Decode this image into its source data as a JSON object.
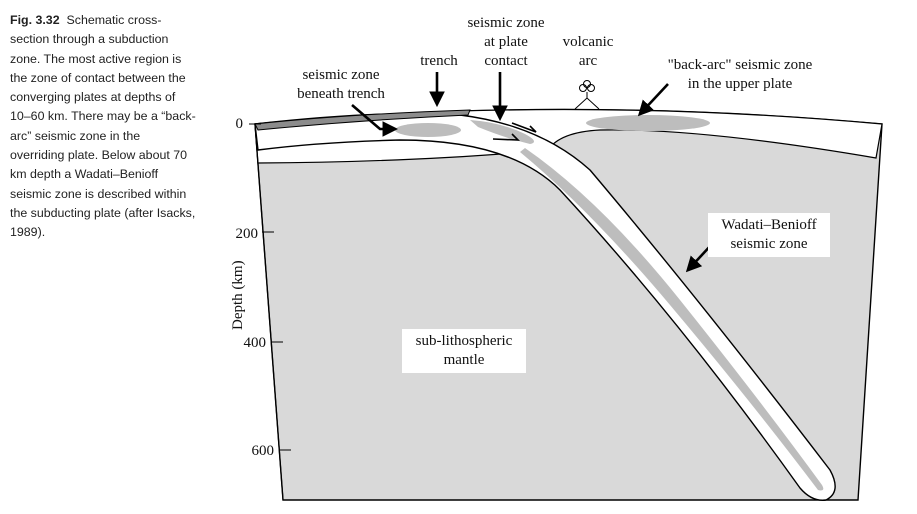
{
  "caption": {
    "figure_number": "Fig. 3.32",
    "text": "Schematic cross-section through a subduction zone. The most active region is the zone of contact between the converging plates at depths of 10–60 km. There may be a “back-arc” seismic zone in the overriding plate. Below about 70 km depth a Wadati–Benioff seismic zone is described within the subducting plate (after Isacks, 1989)."
  },
  "axis": {
    "title": "Depth (km)",
    "ticks": [
      "0",
      "200",
      "400",
      "600"
    ]
  },
  "labels": {
    "seismic_beneath_trench": [
      "seismic zone",
      "beneath trench"
    ],
    "trench": [
      "trench"
    ],
    "plate_contact": [
      "seismic zone",
      "at plate",
      "contact"
    ],
    "volcanic_arc": [
      "volcanic",
      "arc"
    ],
    "back_arc": [
      "\"back-arc\" seismic zone",
      "in the upper plate"
    ],
    "wadati_benioff": [
      "Wadati–Benioff",
      "seismic zone"
    ],
    "mantle": [
      "sub-lithospheric",
      "mantle"
    ]
  },
  "colors": {
    "mantle_fill": "#d9d9d9",
    "lithosphere_fill": "#ffffff",
    "seismic_zone_fill": "#bdbdbd",
    "sediment_fill": "#8c8c8c",
    "outline": "#000000"
  }
}
